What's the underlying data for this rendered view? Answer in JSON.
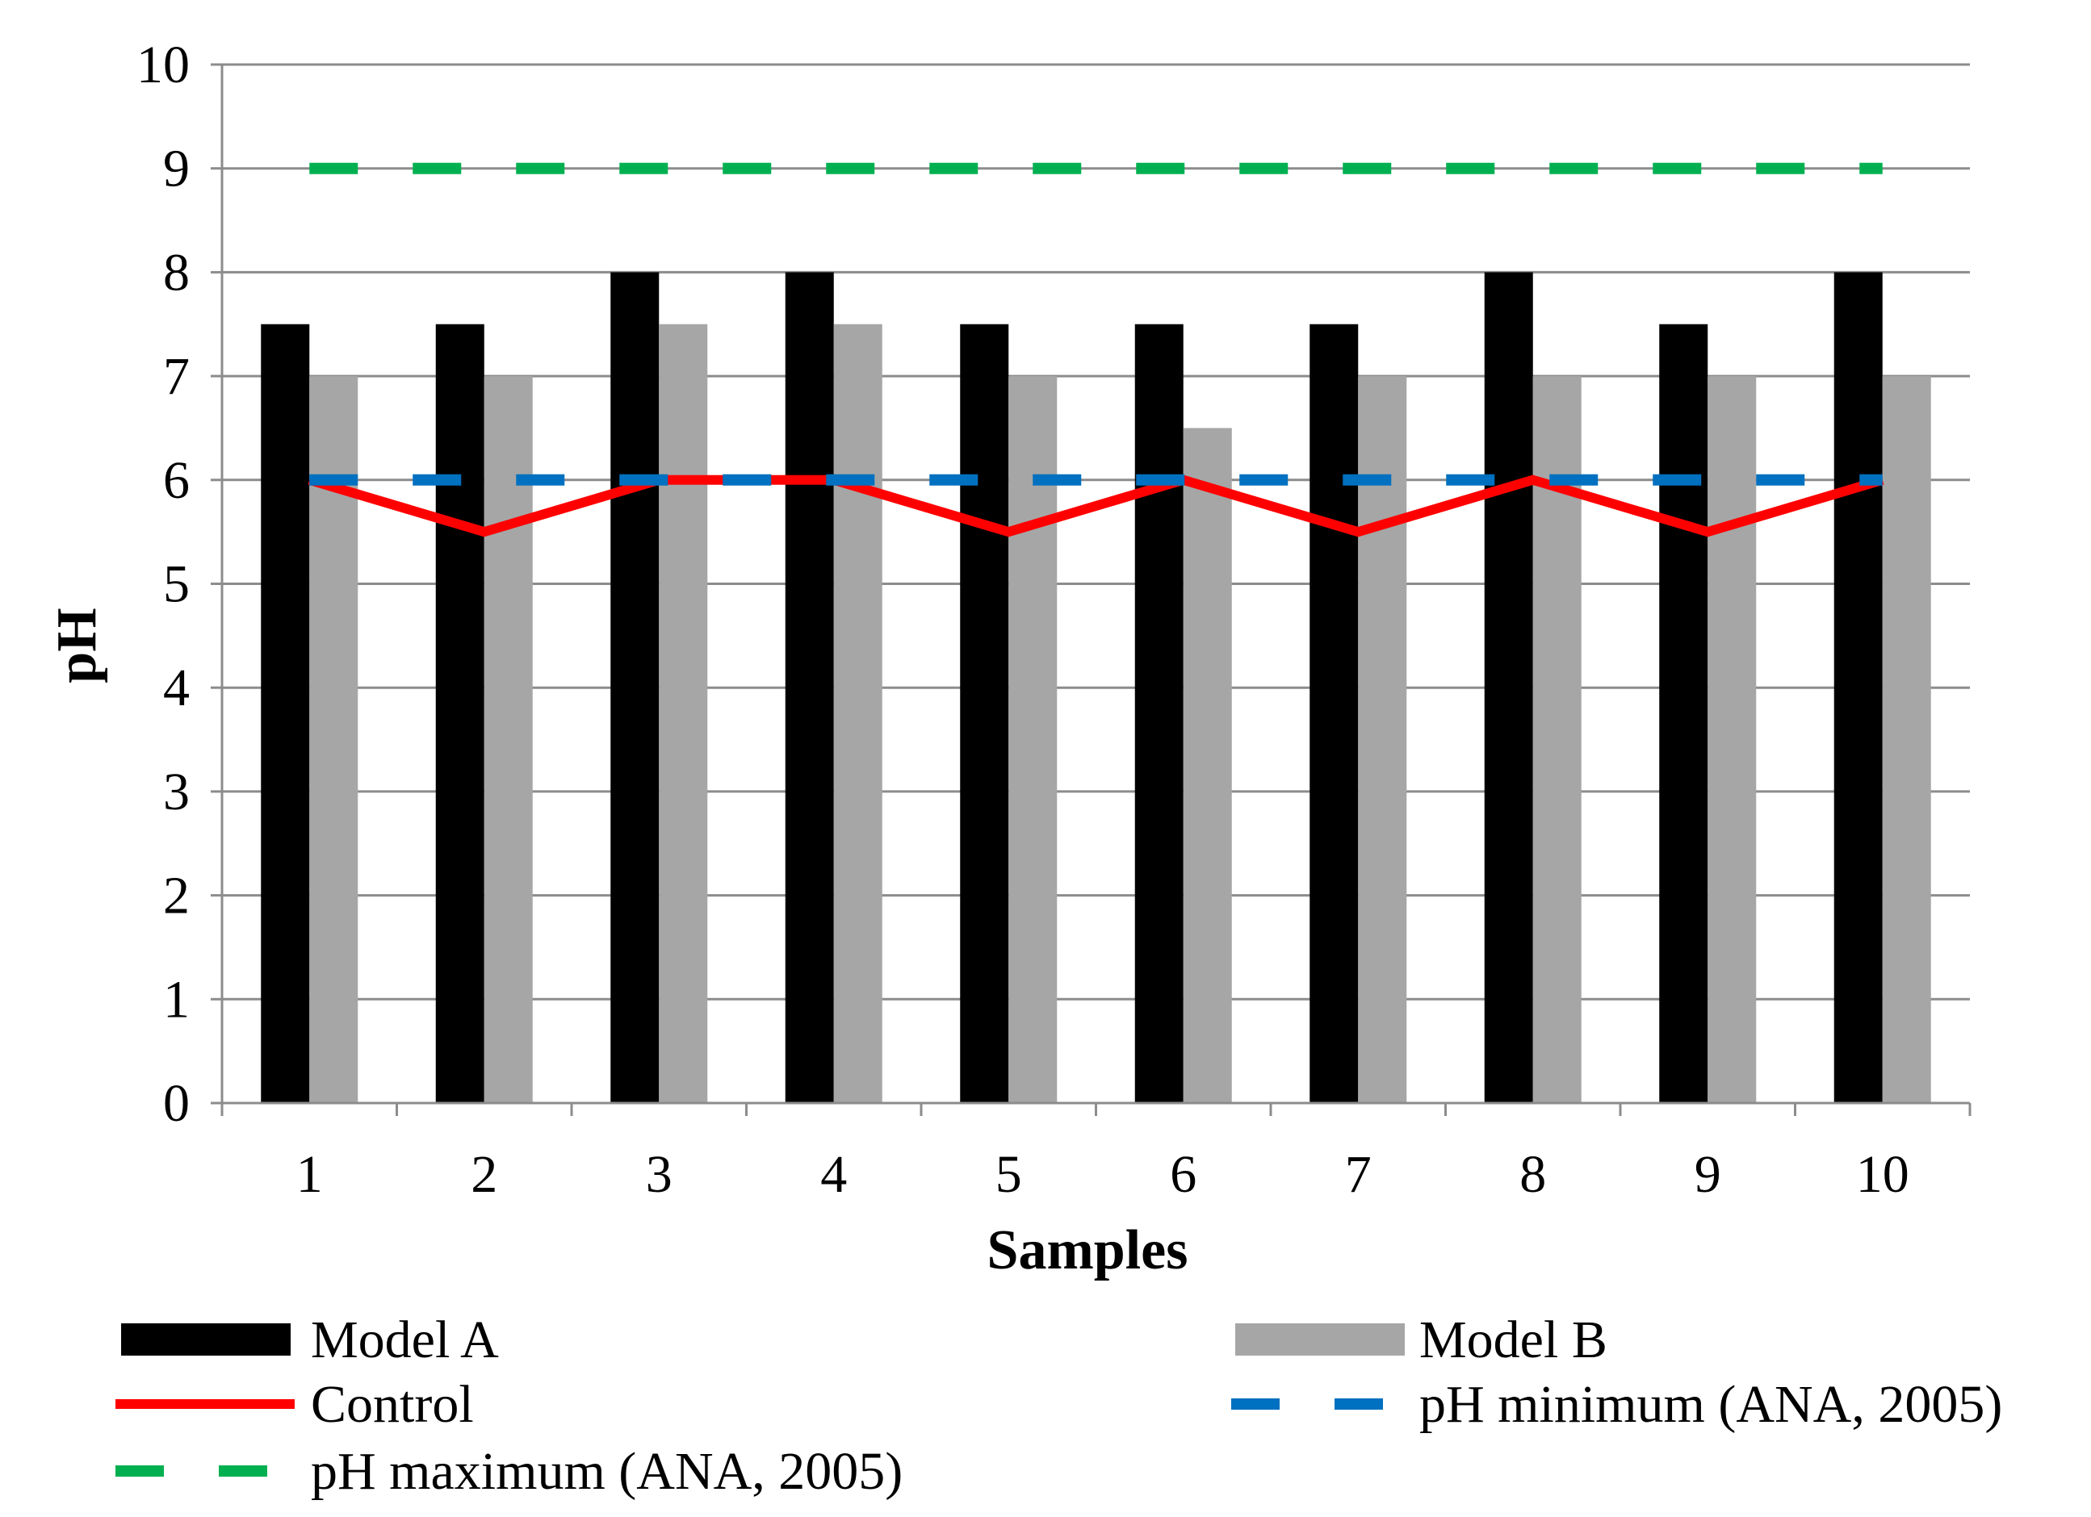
{
  "chart_data": {
    "type": "bar",
    "title": "",
    "xlabel": "Samples",
    "ylabel": "pH",
    "ylim": [
      0,
      10
    ],
    "yticks": [
      "0",
      "1",
      "2",
      "3",
      "4",
      "5",
      "6",
      "7",
      "8",
      "9",
      "10"
    ],
    "grid": true,
    "categories": [
      "1",
      "2",
      "3",
      "4",
      "5",
      "6",
      "7",
      "8",
      "9",
      "10"
    ],
    "series": [
      {
        "name": "Model A",
        "kind": "bar",
        "color": "#000000",
        "values": [
          7.5,
          7.5,
          8,
          8,
          7.5,
          7.5,
          7.5,
          8,
          7.5,
          8
        ]
      },
      {
        "name": "Model B",
        "kind": "bar",
        "color": "#a6a6a6",
        "values": [
          7,
          7,
          7.5,
          7.5,
          7,
          6.5,
          7,
          7,
          7,
          7
        ]
      },
      {
        "name": "Control",
        "kind": "line",
        "color": "#ff0000",
        "values": [
          6,
          5.5,
          6,
          6,
          5.5,
          6,
          5.5,
          6,
          5.5,
          6
        ]
      },
      {
        "name": "pH minimum (ANA, 2005)",
        "kind": "dashed-line",
        "color": "#0070c0",
        "values": [
          6,
          6,
          6,
          6,
          6,
          6,
          6,
          6,
          6,
          6
        ]
      },
      {
        "name": "pH maximum (ANA, 2005)",
        "kind": "dashed-line",
        "color": "#00b050",
        "values": [
          9,
          9,
          9,
          9,
          9,
          9,
          9,
          9,
          9,
          9
        ]
      }
    ],
    "legend_position": "bottom"
  }
}
